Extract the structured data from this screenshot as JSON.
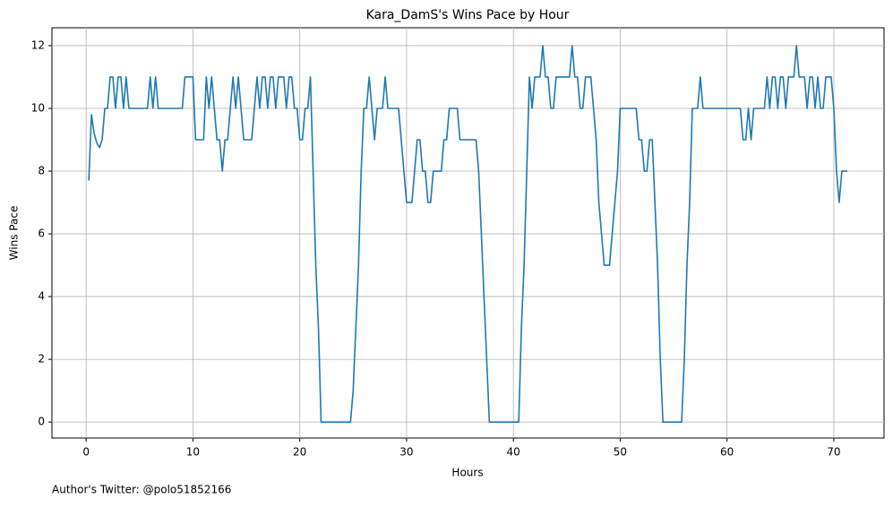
{
  "chart_data": {
    "type": "line",
    "title": "Kara_DamS's Wins Pace by Hour",
    "x_label": "Hours",
    "y_label": "Wins Pace",
    "footnote": "Author's Twitter: @polo51852166",
    "x": [
      0.25,
      0.5,
      0.75,
      1.0,
      1.25,
      1.5,
      1.75,
      2.0,
      2.25,
      2.5,
      2.75,
      3.0,
      3.25,
      3.5,
      3.75,
      4.0,
      5.75,
      6.0,
      6.25,
      6.5,
      6.75,
      9.0,
      9.25,
      10.0,
      10.25,
      11.0,
      11.25,
      11.5,
      11.75,
      12.0,
      12.25,
      12.5,
      12.75,
      13.0,
      13.25,
      13.5,
      13.75,
      14.0,
      14.25,
      14.5,
      14.75,
      15.5,
      15.75,
      16.0,
      16.25,
      16.5,
      16.75,
      17.0,
      17.25,
      17.5,
      17.75,
      18.0,
      18.5,
      18.75,
      19.0,
      19.25,
      19.5,
      19.75,
      20.0,
      20.25,
      20.5,
      20.75,
      21.0,
      21.25,
      21.5,
      21.75,
      22.0,
      24.75,
      25.0,
      25.25,
      25.5,
      25.75,
      26.0,
      26.25,
      26.5,
      26.75,
      27.0,
      27.25,
      27.75,
      28.0,
      28.25,
      29.25,
      29.5,
      29.75,
      30.0,
      30.5,
      30.75,
      31.0,
      31.25,
      31.5,
      31.75,
      32.0,
      32.25,
      32.5,
      33.25,
      33.5,
      33.75,
      34.0,
      34.75,
      35.0,
      36.5,
      36.75,
      37.0,
      37.25,
      37.5,
      37.75,
      40.5,
      40.75,
      41.0,
      41.25,
      41.5,
      41.75,
      42.0,
      42.5,
      42.75,
      43.0,
      43.25,
      43.5,
      43.75,
      44.0,
      45.25,
      45.5,
      45.75,
      46.0,
      46.25,
      46.5,
      46.75,
      47.25,
      47.5,
      47.75,
      48.0,
      48.25,
      48.5,
      49.0,
      49.25,
      49.5,
      49.75,
      50.0,
      51.5,
      51.75,
      52.0,
      52.25,
      52.5,
      52.75,
      53.0,
      53.25,
      53.5,
      53.75,
      54.0,
      55.75,
      56.0,
      56.25,
      56.5,
      56.75,
      57.25,
      57.5,
      57.75,
      61.25,
      61.5,
      61.75,
      62.0,
      62.25,
      62.5,
      63.5,
      63.75,
      64.0,
      64.25,
      64.5,
      64.75,
      65.0,
      65.25,
      65.5,
      65.75,
      66.25,
      66.5,
      66.75,
      67.25,
      67.5,
      67.75,
      68.0,
      68.25,
      68.5,
      68.75,
      69.0,
      69.25,
      69.75,
      70.0,
      70.25,
      70.5,
      70.75,
      71.25
    ],
    "series": [
      {
        "name": "Wins Pace",
        "color": "#1f77b4",
        "values": [
          7.7,
          9.8,
          9.2,
          8.9,
          8.75,
          9,
          10,
          10,
          11,
          11,
          10,
          11,
          11,
          10,
          11,
          10,
          10,
          11,
          10,
          11,
          10,
          10,
          11,
          11,
          9,
          9,
          11,
          10,
          11,
          10,
          9,
          9,
          8,
          9,
          9,
          10,
          11,
          10,
          11,
          10,
          9,
          9,
          10,
          11,
          10,
          11,
          11,
          10,
          11,
          11,
          10,
          11,
          11,
          10,
          11,
          11,
          10,
          10,
          9,
          9,
          10,
          10,
          11,
          8,
          5,
          3,
          0,
          0,
          1,
          3,
          5,
          8,
          10,
          10,
          11,
          10,
          9,
          10,
          10,
          11,
          10,
          10,
          9,
          8,
          7,
          7,
          8,
          9,
          9,
          8,
          8,
          7,
          7,
          8,
          8,
          9,
          9,
          10,
          10,
          9,
          9,
          8,
          6,
          4,
          2,
          0,
          0,
          3,
          5,
          8,
          11,
          10,
          11,
          11,
          12,
          11,
          11,
          10,
          10,
          11,
          11,
          12,
          11,
          11,
          10,
          10,
          11,
          11,
          10,
          9,
          7,
          6,
          5,
          5,
          6,
          7,
          8,
          10,
          10,
          9,
          9,
          8,
          8,
          9,
          9,
          7,
          5,
          2,
          0,
          0,
          2,
          5,
          7,
          10,
          10,
          11,
          10,
          10,
          9,
          9,
          10,
          9,
          10,
          10,
          11,
          10,
          11,
          11,
          10,
          11,
          11,
          10,
          11,
          11,
          12,
          11,
          11,
          10,
          11,
          11,
          10,
          11,
          10,
          10,
          11,
          11,
          10,
          8,
          7,
          8,
          8
        ]
      }
    ],
    "xlim": [
      -3.2,
      74.7
    ],
    "ylim": [
      -0.51,
      12.57
    ],
    "xticks": [
      0,
      10,
      20,
      30,
      40,
      50,
      60,
      70
    ],
    "yticks": [
      0,
      2,
      4,
      6,
      8,
      10,
      12
    ],
    "grid": true
  }
}
